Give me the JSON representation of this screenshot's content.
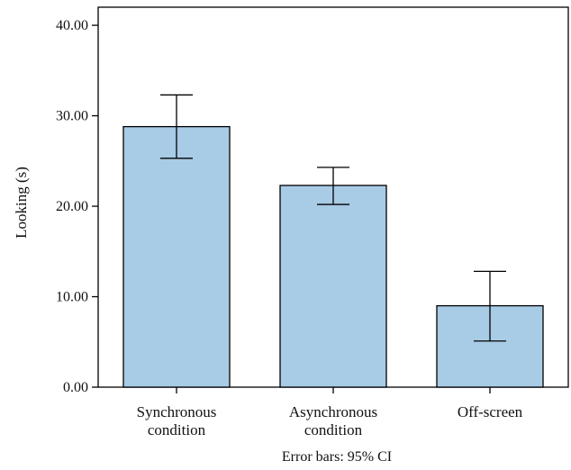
{
  "chart_data": {
    "type": "bar",
    "categories": [
      [
        "Synchronous",
        "condition"
      ],
      [
        "Asynchronous",
        "condition"
      ],
      [
        "Off-screen"
      ]
    ],
    "values": [
      28.8,
      22.3,
      9.0
    ],
    "error_low": [
      25.3,
      20.2,
      5.1
    ],
    "error_high": [
      32.3,
      24.3,
      12.8
    ],
    "ylabel": "Looking (s)",
    "xlabel": "",
    "ylim": [
      0,
      42
    ],
    "yticks": [
      "0.00",
      "10.00",
      "20.00",
      "30.00",
      "40.00"
    ],
    "ytick_values": [
      0,
      10,
      20,
      30,
      40
    ],
    "caption": "Error bars: 95% CI",
    "bar_color": "#a8cbe6",
    "bar_stroke": "#000000",
    "grid": false,
    "legend": "none"
  }
}
